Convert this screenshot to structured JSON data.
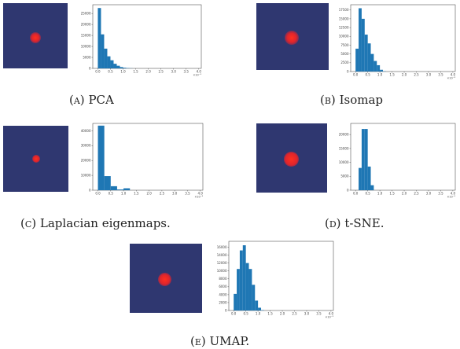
{
  "colors": {
    "heatmap_bg": "#2f3770",
    "cluster": "#e8252b",
    "bar": "#1f77b4"
  },
  "panels": [
    {
      "id": "a",
      "label": "(a)",
      "name": "PCA",
      "chart_data": {
        "type": "bar",
        "title": "",
        "xlabel": "",
        "ylabel": "",
        "x_ticks": [
          "0.0",
          "0.5",
          "1.0",
          "1.5",
          "2.0",
          "2.5",
          "3.0",
          "3.5",
          "4.0"
        ],
        "x_scale_label": "×10⁻³",
        "y_ticks": [
          "0",
          "5000",
          "10000",
          "15000",
          "20000",
          "25000"
        ],
        "ylim": [
          0,
          29000
        ],
        "xlim": [
          -0.2,
          4.1
        ],
        "bin_width": 0.125,
        "bin_starts": [
          0.0,
          0.125,
          0.25,
          0.375,
          0.5,
          0.625,
          0.75,
          0.875,
          1.0,
          1.125,
          1.25
        ],
        "values": [
          27500,
          15500,
          9000,
          5500,
          3700,
          2100,
          1200,
          600,
          300,
          150,
          60
        ]
      }
    },
    {
      "id": "b",
      "label": "(b)",
      "name": "Isomap",
      "chart_data": {
        "type": "bar",
        "title": "",
        "xlabel": "",
        "ylabel": "",
        "x_ticks": [
          "0.0",
          "0.5",
          "1.0",
          "1.5",
          "2.0",
          "2.5",
          "3.0",
          "3.5",
          "4.0"
        ],
        "x_scale_label": "×10⁻³",
        "y_ticks": [
          "0",
          "2500",
          "5000",
          "7500",
          "10000",
          "12500",
          "15000",
          "17500"
        ],
        "ylim": [
          0,
          19000
        ],
        "xlim": [
          -0.2,
          4.1
        ],
        "bin_width": 0.125,
        "bin_starts": [
          0.0,
          0.125,
          0.25,
          0.375,
          0.5,
          0.625,
          0.75,
          0.875,
          1.0,
          1.125
        ],
        "values": [
          6500,
          18000,
          15000,
          10500,
          8000,
          5000,
          3000,
          1800,
          500,
          80
        ]
      }
    },
    {
      "id": "c",
      "label": "(c)",
      "name": "Laplacian eigenmaps.",
      "chart_data": {
        "type": "bar",
        "title": "",
        "xlabel": "",
        "ylabel": "",
        "x_ticks": [
          "0.0",
          "0.5",
          "1.0",
          "1.5",
          "2.0",
          "2.5",
          "3.0",
          "3.5",
          "4.0"
        ],
        "x_scale_label": "×10⁻³",
        "y_ticks": [
          "0",
          "10000",
          "20000",
          "30000",
          "40000"
        ],
        "ylim": [
          0,
          45000
        ],
        "xlim": [
          -0.2,
          4.1
        ],
        "bin_width": 0.25,
        "bin_starts": [
          0.0,
          0.25,
          0.5,
          0.75,
          1.0
        ],
        "values": [
          43500,
          9500,
          2700,
          500,
          1300
        ]
      }
    },
    {
      "id": "d",
      "label": "(d)",
      "name": "t-SNE.",
      "chart_data": {
        "type": "bar",
        "title": "",
        "xlabel": "",
        "ylabel": "",
        "x_ticks": [
          "0.0",
          "0.5",
          "1.0",
          "1.5",
          "2.0",
          "2.5",
          "3.0",
          "3.5",
          "4.0"
        ],
        "x_scale_label": "×10⁻³",
        "y_ticks": [
          "0",
          "5000",
          "10000",
          "15000",
          "20000"
        ],
        "ylim": [
          0,
          24000
        ],
        "xlim": [
          -0.2,
          4.1
        ],
        "bin_width": 0.125,
        "bin_starts": [
          0.125,
          0.25,
          0.375,
          0.5,
          0.625
        ],
        "values": [
          8000,
          22000,
          22000,
          8500,
          1800
        ]
      }
    },
    {
      "id": "e",
      "label": "(e)",
      "name": "UMAP.",
      "chart_data": {
        "type": "bar",
        "title": "",
        "xlabel": "",
        "ylabel": "",
        "x_ticks": [
          "0.0",
          "0.5",
          "1.0",
          "1.5",
          "2.0",
          "2.5",
          "3.0",
          "3.5",
          "4.0"
        ],
        "x_scale_label": "×10⁻³",
        "y_ticks": [
          "0",
          "2000",
          "4000",
          "6000",
          "8000",
          "10000",
          "12000",
          "14000",
          "16000"
        ],
        "ylim": [
          0,
          17500
        ],
        "xlim": [
          -0.2,
          4.1
        ],
        "bin_width": 0.125,
        "bin_starts": [
          0.0,
          0.125,
          0.25,
          0.375,
          0.5,
          0.625,
          0.75,
          0.875,
          1.0,
          1.125
        ],
        "values": [
          4200,
          10500,
          15200,
          16500,
          12000,
          10500,
          6500,
          2500,
          700,
          100
        ]
      }
    }
  ]
}
